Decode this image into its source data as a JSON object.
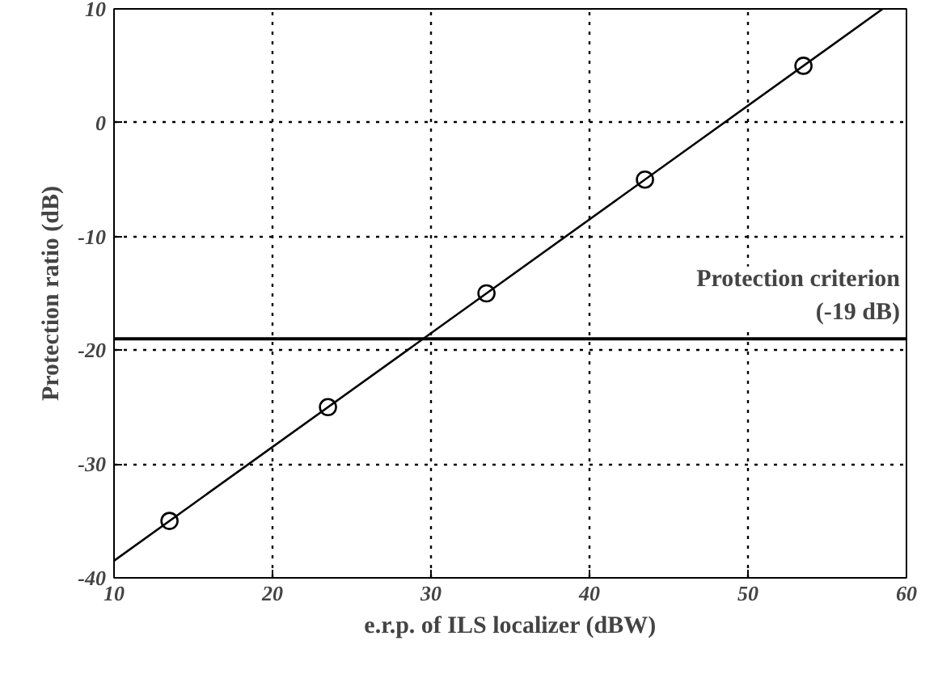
{
  "chart_data": {
    "type": "scatter",
    "xlabel": "e.r.p. of ILS localizer (dBW)",
    "ylabel": "Protection ratio (dB)",
    "xlim": [
      10,
      60
    ],
    "ylim": [
      -40,
      10
    ],
    "xticks": [
      10,
      20,
      30,
      40,
      50,
      60
    ],
    "yticks": [
      -40,
      -30,
      -20,
      -10,
      0,
      10
    ],
    "grid": true,
    "series": [
      {
        "marker": "circle",
        "color": "#000000",
        "x": [
          13.5,
          23.5,
          33.5,
          43.5,
          53.5
        ],
        "values": [
          -35,
          -25,
          -15,
          -5,
          5
        ]
      },
      {
        "type": "line",
        "marker": "none",
        "line_style": "solid",
        "color": "#000000",
        "x": [
          10,
          58.5
        ],
        "values": [
          -38.5,
          10
        ]
      }
    ],
    "ref_lines": [
      {
        "axis": "y",
        "value": -19,
        "label": "Protection criterion\n(-19 dB)",
        "color": "#000000",
        "line_style": "solid"
      }
    ]
  }
}
